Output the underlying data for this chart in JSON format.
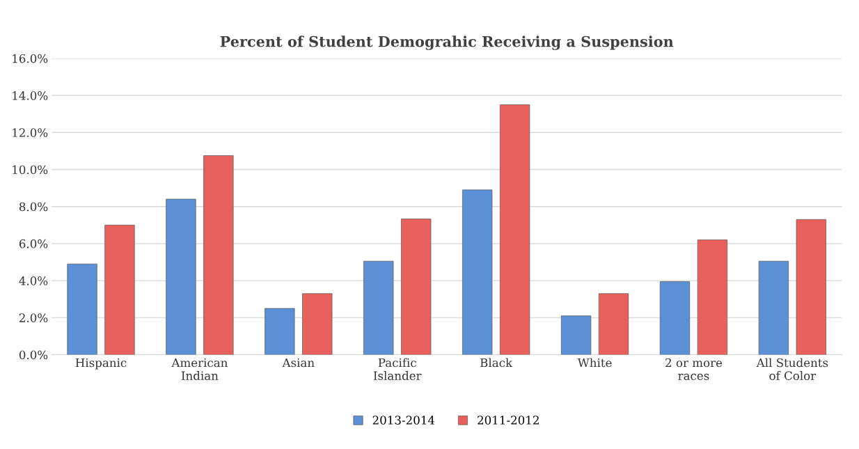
{
  "chart_data": {
    "type": "bar",
    "title": "Percent of Student Demograhic Receiving a Suspension",
    "categories": [
      "Hispanic",
      "American\nIndian",
      "Asian",
      "Pacific\nIslander",
      "Black",
      "White",
      "2 or more\nraces",
      "All Students\nof Color"
    ],
    "series": [
      {
        "name": "2013-2014",
        "color": "#5b8fd6",
        "values": [
          4.9,
          8.4,
          2.5,
          5.05,
          8.9,
          2.1,
          3.95,
          5.05
        ]
      },
      {
        "name": "2011-2012",
        "color": "#e8605c",
        "values": [
          7.0,
          10.75,
          3.3,
          7.33,
          13.5,
          3.3,
          6.2,
          7.3
        ]
      }
    ],
    "ylim": [
      0,
      16
    ],
    "yticks": [
      {
        "value": 0,
        "label": "0.0%"
      },
      {
        "value": 2,
        "label": "2.0%"
      },
      {
        "value": 4,
        "label": "4.0%"
      },
      {
        "value": 6,
        "label": "6.0%"
      },
      {
        "value": 8,
        "label": "8.0%"
      },
      {
        "value": 10,
        "label": "10.0%"
      },
      {
        "value": 12,
        "label": "12.0%"
      },
      {
        "value": 14,
        "label": "14.0%"
      },
      {
        "value": 16,
        "label": "16.0%"
      }
    ],
    "grid": "y",
    "legend": "bottom"
  }
}
